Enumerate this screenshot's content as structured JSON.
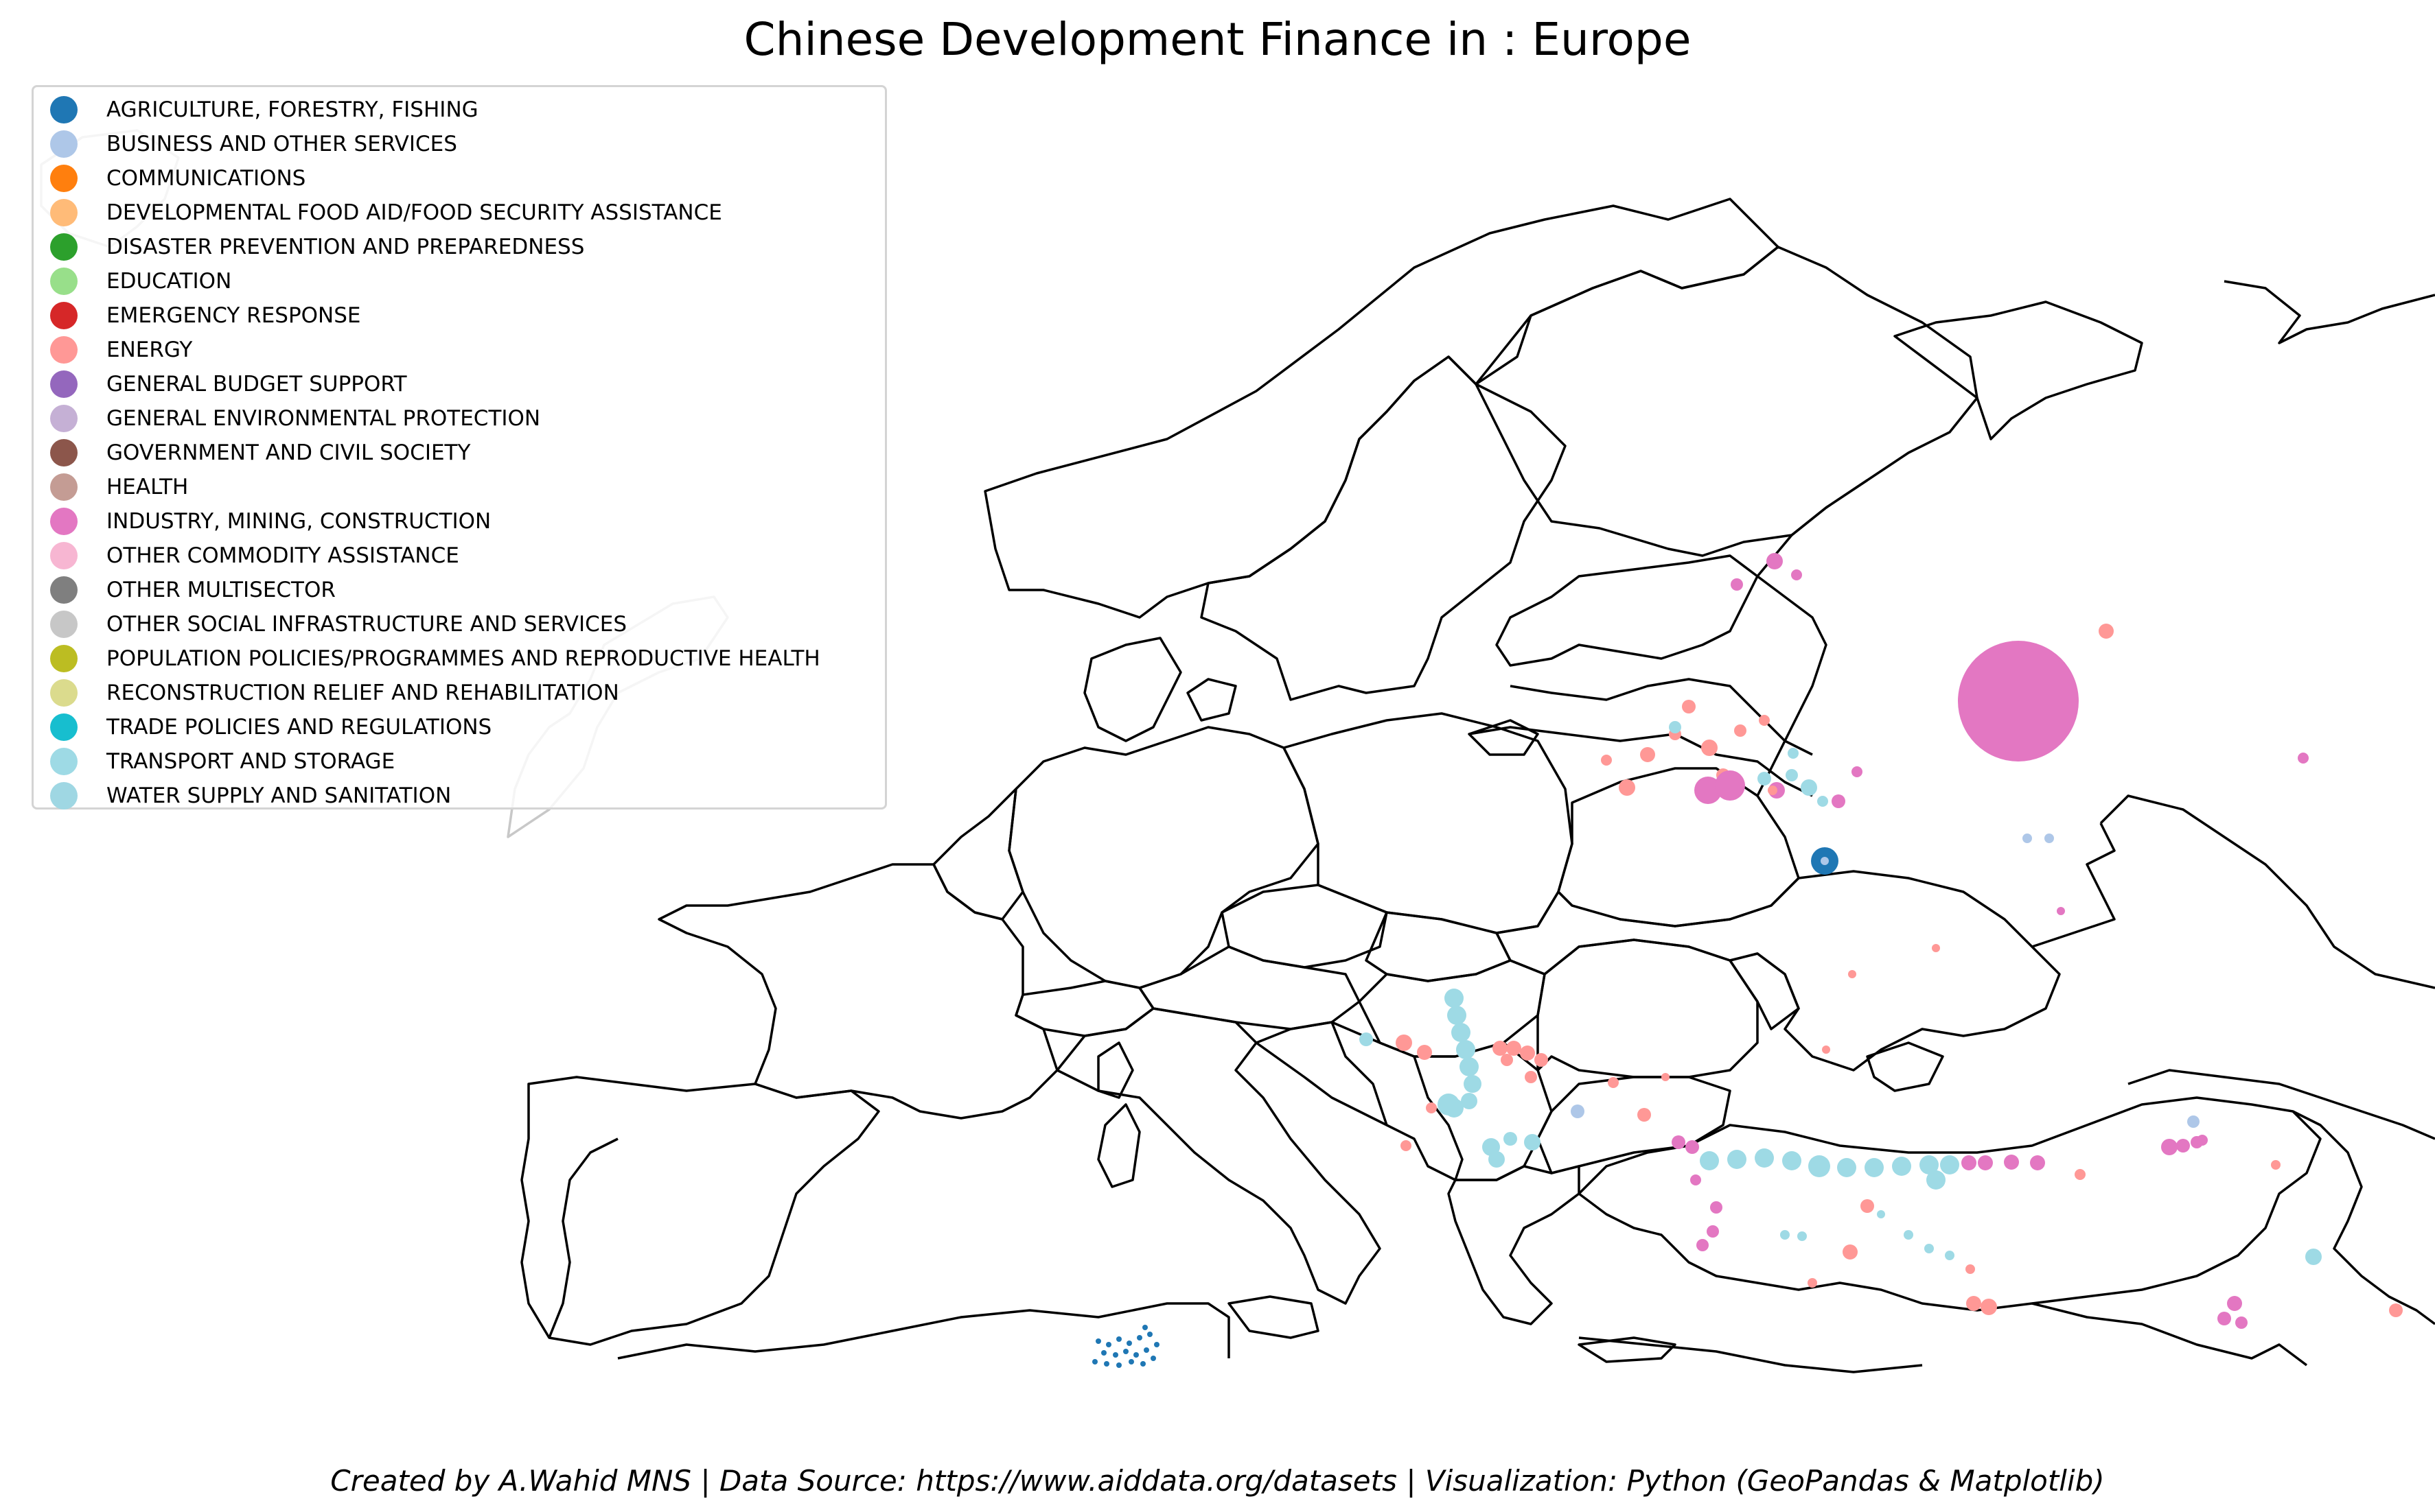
{
  "title": "Chinese Development Finance in : Europe",
  "caption": "Created by A.Wahid MNS | Data Source: https://www.aiddata.org/datasets | Visualization: Python (GeoPandas & Matplotlib)",
  "legend": [
    {
      "label": "AGRICULTURE, FORESTRY, FISHING",
      "color": "#1f77b4"
    },
    {
      "label": "BUSINESS AND OTHER SERVICES",
      "color": "#aec7e8"
    },
    {
      "label": "COMMUNICATIONS",
      "color": "#ff7f0e"
    },
    {
      "label": "DEVELOPMENTAL FOOD AID/FOOD SECURITY ASSISTANCE",
      "color": "#ffbb78"
    },
    {
      "label": "DISASTER PREVENTION AND PREPAREDNESS",
      "color": "#2ca02c"
    },
    {
      "label": "EDUCATION",
      "color": "#98df8a"
    },
    {
      "label": "EMERGENCY RESPONSE",
      "color": "#d62728"
    },
    {
      "label": "ENERGY",
      "color": "#ff9896"
    },
    {
      "label": "GENERAL BUDGET SUPPORT",
      "color": "#9467bd"
    },
    {
      "label": "GENERAL ENVIRONMENTAL PROTECTION",
      "color": "#c5b0d5"
    },
    {
      "label": "GOVERNMENT AND CIVIL SOCIETY",
      "color": "#8c564b"
    },
    {
      "label": "HEALTH",
      "color": "#c49c94"
    },
    {
      "label": "INDUSTRY, MINING, CONSTRUCTION",
      "color": "#e377c2"
    },
    {
      "label": "OTHER COMMODITY ASSISTANCE",
      "color": "#f7b6d2"
    },
    {
      "label": "OTHER MULTISECTOR",
      "color": "#7f7f7f"
    },
    {
      "label": "OTHER SOCIAL INFRASTRUCTURE AND SERVICES",
      "color": "#c7c7c7"
    },
    {
      "label": "POPULATION POLICIES/PROGRAMMES AND REPRODUCTIVE HEALTH",
      "color": "#bcbd22"
    },
    {
      "label": "RECONSTRUCTION RELIEF AND REHABILITATION",
      "color": "#dbdb8d"
    },
    {
      "label": "TRADE POLICIES AND REGULATIONS",
      "color": "#17becf"
    },
    {
      "label": "TRANSPORT AND STORAGE",
      "color": "#9edae5"
    },
    {
      "label": "WATER SUPPLY AND SANITATION",
      "color": "#9fd7e3"
    }
  ],
  "map": {
    "region": "Europe",
    "outline_color": "#000000",
    "land_fill": "#ffffff",
    "project_sectors_present": [
      "ENERGY",
      "INDUSTRY, MINING, CONSTRUCTION",
      "TRANSPORT AND STORAGE",
      "AGRICULTURE, FORESTRY, FISHING",
      "BUSINESS AND OTHER SERVICES",
      "TRADE POLICIES AND REGULATIONS"
    ]
  }
}
